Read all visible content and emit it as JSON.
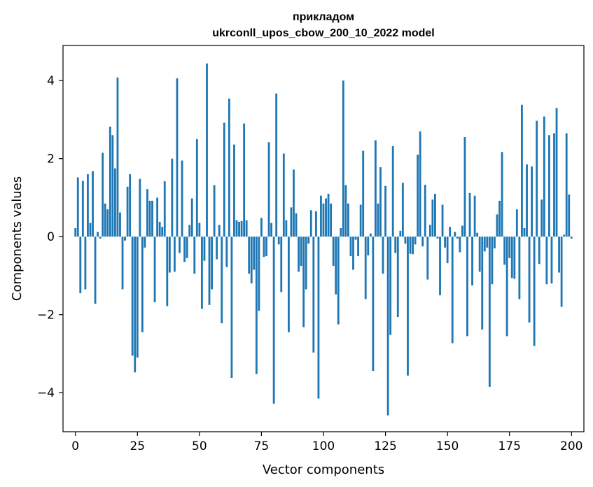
{
  "chart_data": {
    "type": "bar",
    "title_line1": "прикладом",
    "title_line2": "ukrconll_upos_cbow_200_10_2022 model",
    "xlabel": "Vector components",
    "ylabel": "Components values",
    "xlim": [
      -5,
      205
    ],
    "ylim": [
      -5.0,
      4.9
    ],
    "xticks": [
      0,
      25,
      50,
      75,
      100,
      125,
      150,
      175,
      200
    ],
    "yticks": [
      -4,
      -2,
      0,
      2,
      4
    ],
    "ytick_labels": [
      "−4",
      "−2",
      "0",
      "2",
      "4"
    ],
    "bar_color": "#1f77b4",
    "values": [
      0.22,
      1.52,
      -1.45,
      1.43,
      -1.35,
      1.6,
      0.35,
      1.68,
      -1.72,
      0.12,
      -0.05,
      2.15,
      0.85,
      0.7,
      2.82,
      2.6,
      1.75,
      4.08,
      0.62,
      -1.35,
      -0.1,
      1.28,
      1.6,
      -3.05,
      -3.48,
      -3.1,
      1.48,
      -2.45,
      -0.28,
      1.22,
      0.92,
      0.92,
      -1.68,
      1.0,
      0.38,
      0.25,
      1.42,
      -1.78,
      -0.92,
      2.0,
      -0.9,
      4.06,
      -0.42,
      1.95,
      -0.65,
      -0.55,
      0.3,
      0.98,
      -0.95,
      2.5,
      0.35,
      -1.85,
      -0.62,
      4.44,
      -1.75,
      -1.35,
      1.32,
      -0.58,
      0.3,
      -2.22,
      2.92,
      -0.78,
      3.54,
      -3.62,
      2.36,
      0.42,
      0.38,
      0.4,
      2.9,
      0.42,
      -0.95,
      -1.2,
      -0.85,
      -3.52,
      -1.9,
      0.48,
      -0.52,
      -0.5,
      2.42,
      0.35,
      -4.28,
      3.67,
      -0.2,
      -1.42,
      2.13,
      0.42,
      -2.45,
      0.75,
      1.72,
      0.6,
      -0.9,
      -0.75,
      -2.32,
      -1.35,
      -0.18,
      0.68,
      -2.97,
      0.65,
      -4.15,
      1.05,
      0.85,
      0.98,
      1.1,
      0.85,
      -0.75,
      -1.48,
      -2.25,
      0.22,
      4.0,
      1.32,
      0.85,
      -0.5,
      -0.85,
      -0.08,
      -0.5,
      0.82,
      2.2,
      -1.6,
      -0.48,
      0.08,
      -3.44,
      2.47,
      0.85,
      1.78,
      -0.95,
      1.3,
      -4.58,
      -2.52,
      2.32,
      -0.42,
      -2.06,
      0.15,
      1.38,
      -0.18,
      -3.56,
      -0.44,
      -0.45,
      -0.2,
      2.1,
      2.7,
      -0.25,
      1.33,
      -1.1,
      0.3,
      0.95,
      1.1,
      -0.05,
      -1.5,
      0.82,
      -0.28,
      -0.68,
      0.25,
      -2.73,
      0.12,
      -0.05,
      -0.4,
      0.28,
      2.55,
      -2.55,
      1.12,
      -1.25,
      1.05,
      0.1,
      -0.9,
      -2.38,
      -0.38,
      -0.28,
      -3.85,
      -1.22,
      -0.3,
      0.57,
      0.92,
      2.17,
      -0.72,
      -2.55,
      -0.55,
      -1.06,
      -1.08,
      0.7,
      -1.6,
      3.38,
      0.22,
      1.85,
      -2.2,
      1.8,
      -2.8,
      2.97,
      -0.7,
      0.95,
      3.08,
      -1.22,
      2.6,
      -1.2,
      2.65,
      3.3,
      -0.92,
      -1.8,
      0.05,
      2.65,
      1.08,
      -0.05
    ]
  }
}
